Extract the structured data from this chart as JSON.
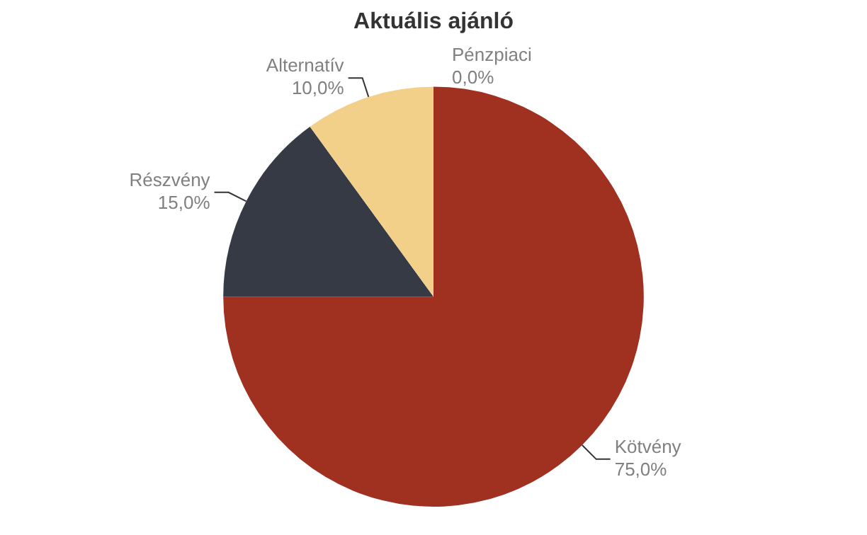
{
  "chart_data": {
    "type": "pie",
    "title": "Aktuális ajánló",
    "categories": [
      "Kötvény",
      "Részvény",
      "Alternatív",
      "Pénzpiaci"
    ],
    "values": [
      75,
      15,
      10,
      0
    ],
    "colors": [
      "#a03020",
      "#363a45",
      "#f2d08a",
      "#8aa0b8"
    ],
    "value_labels": [
      "75,0%",
      "15,0%",
      "10,0%",
      "0,0%"
    ],
    "legend": false
  }
}
